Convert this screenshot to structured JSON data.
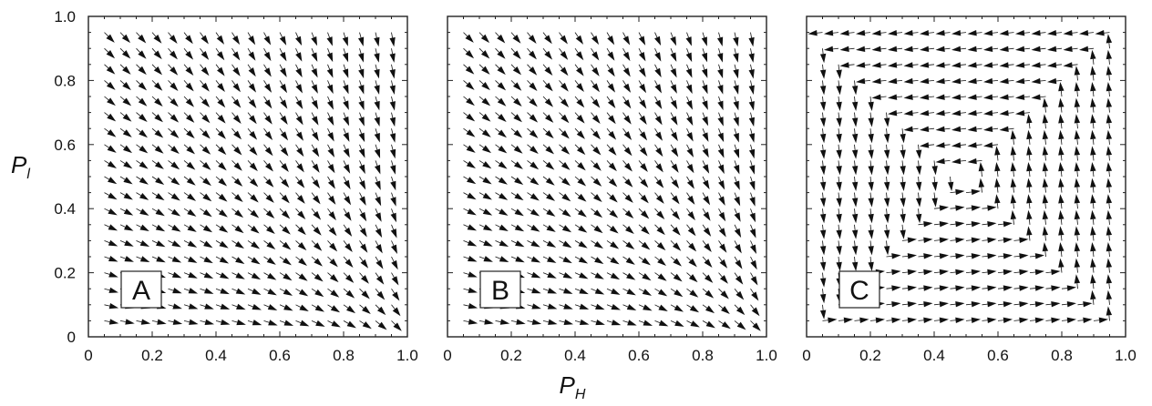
{
  "chart_data": {
    "type": "vector-field",
    "xlabel": "P",
    "xlabel_sub": "H",
    "ylabel": "P",
    "ylabel_sub": "l",
    "xlim": [
      0,
      1.0
    ],
    "ylim": [
      0,
      1.0
    ],
    "x_ticks": [
      "0",
      "0.2",
      "0.4",
      "0.6",
      "0.8",
      "1.0"
    ],
    "y_ticks": [
      "0",
      "0.2",
      "0.4",
      "0.6",
      "0.8",
      "1.0"
    ],
    "grid": false,
    "panels": [
      {
        "label": "A",
        "field": "converge-to-corner",
        "sink": [
          1.0,
          0.0
        ],
        "grid_start": 0.05,
        "grid_step": 0.05
      },
      {
        "label": "B",
        "field": "converge-to-corner",
        "sink": [
          1.0,
          0.0
        ],
        "grid_start": 0.05,
        "grid_step": 0.05
      },
      {
        "label": "C",
        "field": "counterclockwise-spiral",
        "center": [
          0.5,
          0.5
        ],
        "grid_start": 0.05,
        "grid_step": 0.05
      }
    ]
  }
}
